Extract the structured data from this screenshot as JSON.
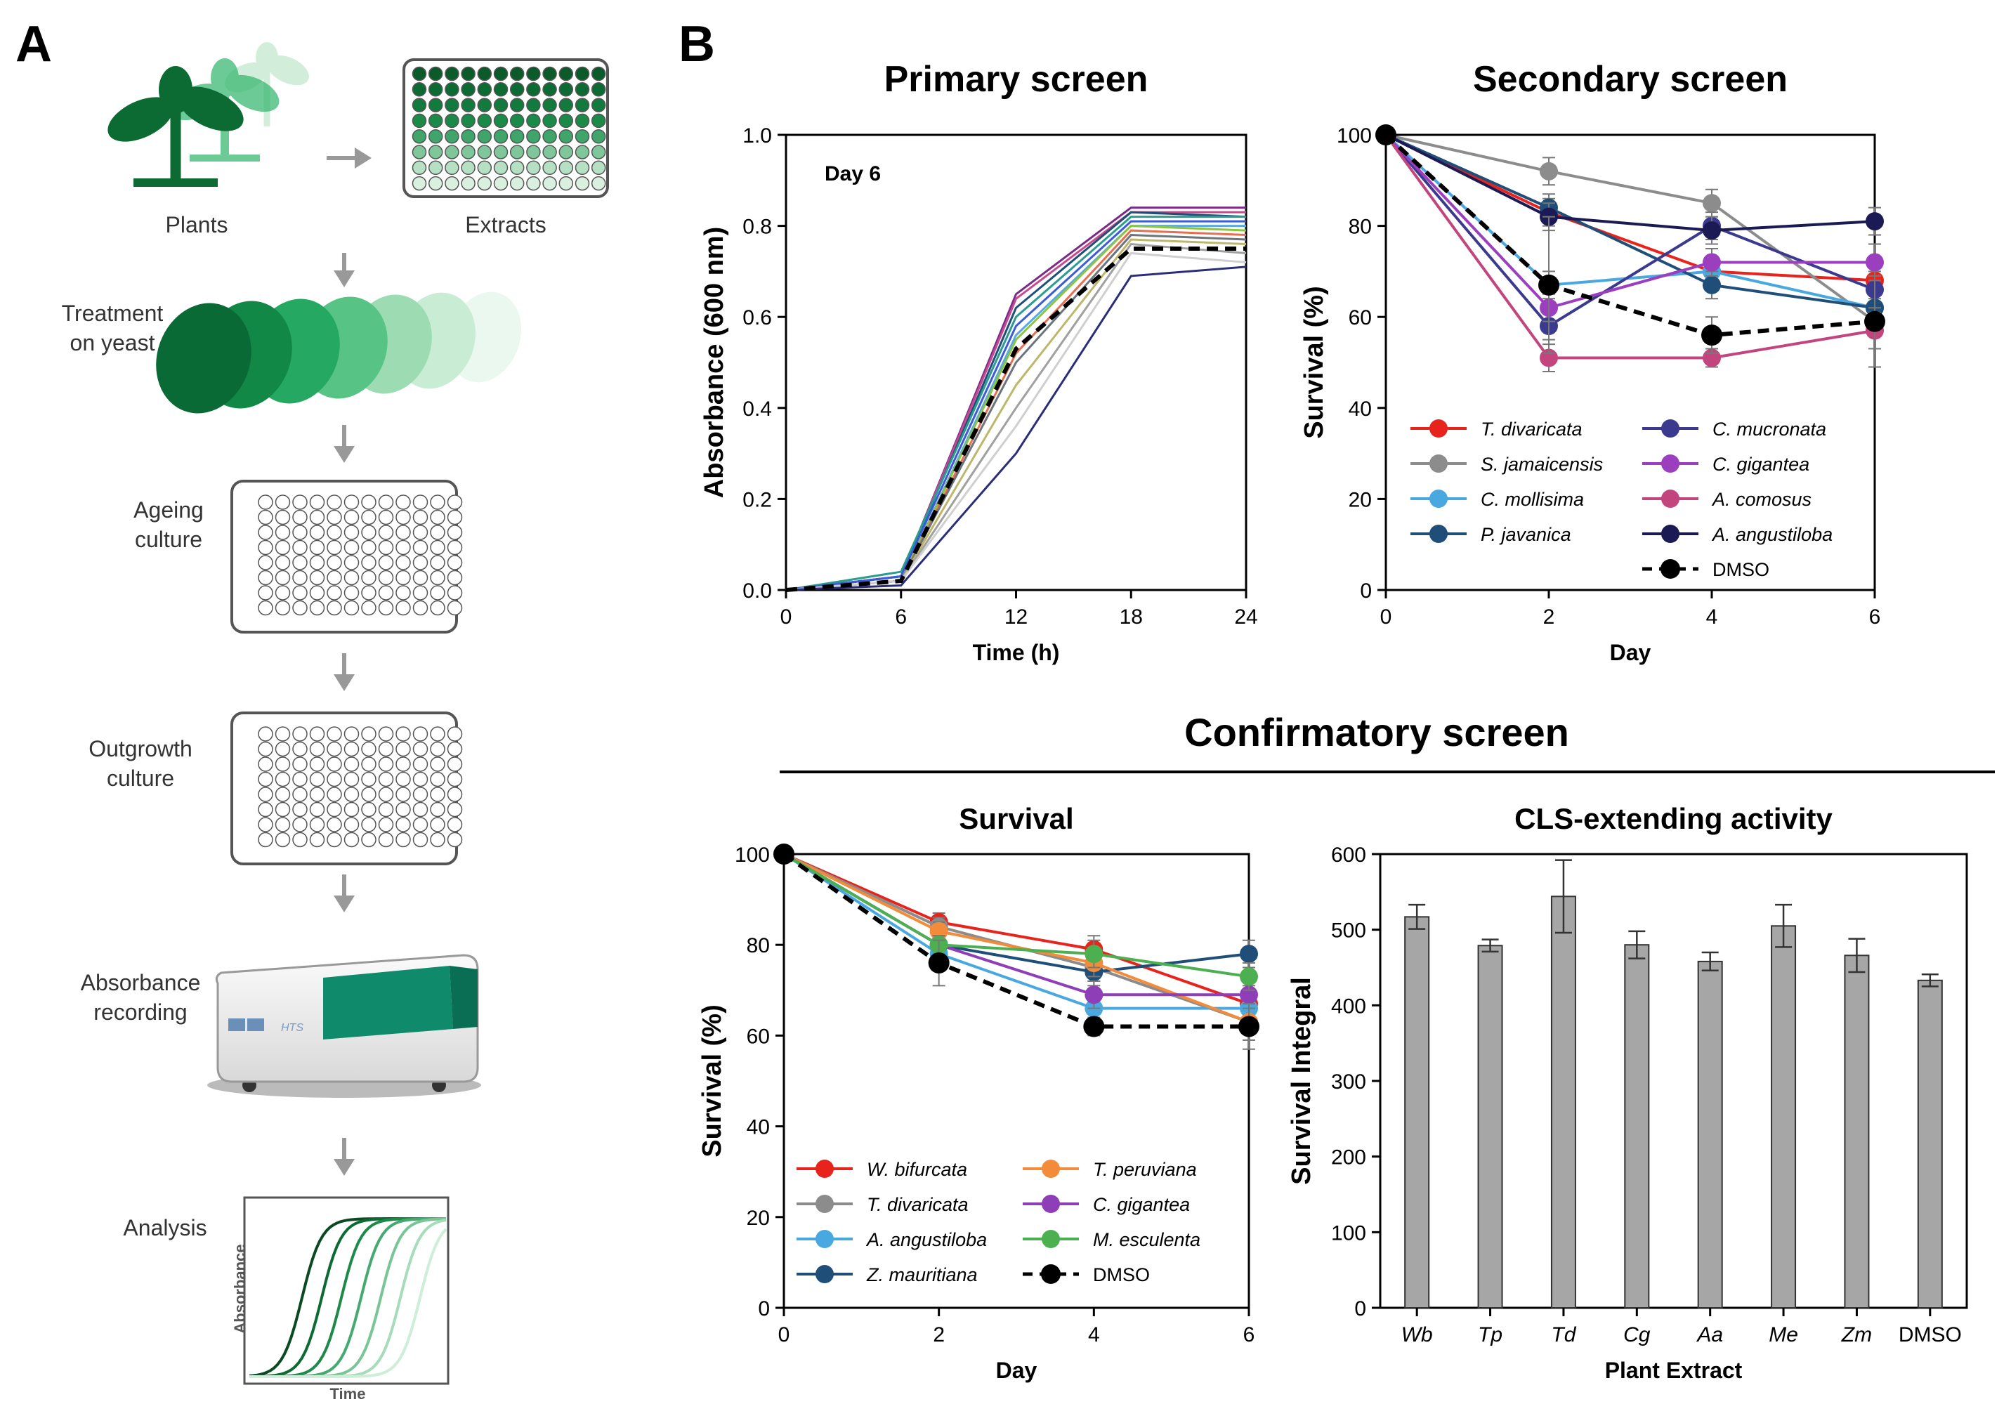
{
  "panels": {
    "a": "A",
    "b": "B"
  },
  "workflow": {
    "plants": "Plants",
    "extracts": "Extracts",
    "treatment": [
      "Treatment",
      "on yeast"
    ],
    "ageing": [
      "Ageing",
      "culture"
    ],
    "outgrowth": [
      "Outgrowth",
      "culture"
    ],
    "absorbance": [
      "Absorbance",
      "recording"
    ],
    "analysis": "Analysis",
    "analysis_ylabel": "Absorbance",
    "analysis_xlabel": "Time",
    "reader_badge": "HTS",
    "colors": {
      "dark": "#0c5c2c",
      "mid": "#1aa35a",
      "light": "#a9e0bd",
      "teal": "#0f8a6a"
    }
  },
  "confirmatory_title": "Confirmatory screen",
  "chart_data": [
    {
      "id": "primary",
      "type": "line",
      "title": "Primary screen",
      "annotation": "Day 6",
      "xlabel": "Time (h)",
      "ylabel": "Absorbance (600 nm)",
      "xlim": [
        0,
        24
      ],
      "ylim": [
        0,
        1.0
      ],
      "xticks": [
        "0",
        "6",
        "12",
        "18",
        "24"
      ],
      "yticks": [
        "0.0",
        "0.2",
        "0.4",
        "0.6",
        "0.8",
        "1.0"
      ],
      "x": [
        0,
        6,
        12,
        18,
        24
      ],
      "series": [
        {
          "values": [
            0,
            0.03,
            0.65,
            0.84,
            0.84
          ],
          "color": "#7b2a8a"
        },
        {
          "values": [
            0,
            0.03,
            0.64,
            0.83,
            0.83
          ],
          "color": "#c74a8f"
        },
        {
          "values": [
            0,
            0.03,
            0.62,
            0.83,
            0.82
          ],
          "color": "#1f4e79"
        },
        {
          "values": [
            0,
            0.04,
            0.6,
            0.82,
            0.82
          ],
          "color": "#2a9d8f"
        },
        {
          "values": [
            0,
            0.03,
            0.58,
            0.81,
            0.81
          ],
          "color": "#3b5bdb"
        },
        {
          "values": [
            0,
            0.02,
            0.56,
            0.8,
            0.8
          ],
          "color": "#5aa9e6"
        },
        {
          "values": [
            0,
            0.02,
            0.55,
            0.8,
            0.79
          ],
          "color": "#8cc63f"
        },
        {
          "values": [
            0,
            0.02,
            0.52,
            0.79,
            0.78
          ],
          "color": "#e76f51"
        },
        {
          "values": [
            0,
            0.02,
            0.5,
            0.78,
            0.77
          ],
          "color": "#6c757d"
        },
        {
          "values": [
            0,
            0.02,
            0.45,
            0.77,
            0.76
          ],
          "color": "#bdb76b"
        },
        {
          "values": [
            0,
            0.02,
            0.4,
            0.76,
            0.74
          ],
          "color": "#a0a0a0"
        },
        {
          "values": [
            0,
            0.02,
            0.36,
            0.74,
            0.72
          ],
          "color": "#cfcfcf"
        },
        {
          "values": [
            0,
            0.01,
            0.3,
            0.69,
            0.71
          ],
          "color": "#2b2d7a"
        }
      ],
      "dmso": {
        "name": "DMSO",
        "values": [
          0,
          0.02,
          0.53,
          0.75,
          0.75
        ]
      }
    },
    {
      "id": "secondary",
      "type": "line",
      "title": "Secondary screen",
      "xlabel": "Day",
      "ylabel": "Survival (%)",
      "xlim": [
        0,
        6
      ],
      "ylim": [
        0,
        100
      ],
      "xticks": [
        "0",
        "2",
        "4",
        "6"
      ],
      "yticks": [
        "0",
        "20",
        "40",
        "60",
        "80",
        "100"
      ],
      "x": [
        0,
        2,
        4,
        6
      ],
      "series": [
        {
          "name": "T. divaricata",
          "color": "#e8231c",
          "values": [
            100,
            83,
            70,
            68
          ],
          "err": [
            0,
            3,
            3,
            4
          ]
        },
        {
          "name": "S. jamaicensis",
          "color": "#8c8c8c",
          "values": [
            100,
            92,
            85,
            59
          ],
          "err": [
            0,
            3,
            3,
            10
          ]
        },
        {
          "name": "C. mollisima",
          "color": "#4aa8e0",
          "values": [
            100,
            67,
            70,
            62
          ],
          "err": [
            0,
            3,
            3,
            4
          ]
        },
        {
          "name": "P. javanica",
          "color": "#1f4e79",
          "values": [
            100,
            84,
            67,
            62
          ],
          "err": [
            0,
            3,
            3,
            4
          ]
        },
        {
          "name": "C. mucronata",
          "color": "#3b3a8f",
          "values": [
            100,
            58,
            80,
            66
          ],
          "err": [
            0,
            3,
            3,
            4
          ]
        },
        {
          "name": "C. gigantea",
          "color": "#9b3fbf",
          "values": [
            100,
            62,
            72,
            72
          ],
          "err": [
            0,
            3,
            3,
            4
          ]
        },
        {
          "name": "A. comosus",
          "color": "#c2457e",
          "values": [
            100,
            51,
            51,
            57
          ],
          "err": [
            0,
            3,
            2,
            4
          ]
        },
        {
          "name": "A. angustiloba",
          "color": "#1c1a55",
          "values": [
            100,
            82,
            79,
            81
          ],
          "err": [
            0,
            3,
            3,
            3
          ]
        }
      ],
      "dmso": {
        "name": "DMSO",
        "values": [
          100,
          67,
          56,
          59
        ],
        "err": [
          0,
          15,
          4,
          10
        ]
      }
    },
    {
      "id": "survival",
      "type": "line",
      "title": "Survival",
      "xlabel": "Day",
      "ylabel": "Survival (%)",
      "xlim": [
        0,
        6
      ],
      "ylim": [
        0,
        100
      ],
      "xticks": [
        "0",
        "2",
        "4",
        "6"
      ],
      "yticks": [
        "0",
        "20",
        "40",
        "60",
        "80",
        "100"
      ],
      "x": [
        0,
        2,
        4,
        6
      ],
      "series": [
        {
          "name": "W. bifurcata",
          "color": "#e8231c",
          "values": [
            100,
            85,
            79,
            67
          ],
          "err": [
            0,
            2,
            3,
            4
          ]
        },
        {
          "name": "T. divaricata",
          "color": "#8c8c8c",
          "values": [
            100,
            84,
            75,
            63
          ],
          "err": [
            0,
            2,
            3,
            4
          ]
        },
        {
          "name": "A. angustiloba",
          "color": "#4aa8e0",
          "values": [
            100,
            78,
            66,
            66
          ],
          "err": [
            0,
            2,
            3,
            3
          ]
        },
        {
          "name": "Z. mauritiana",
          "color": "#1f4e79",
          "values": [
            100,
            80,
            74,
            78
          ],
          "err": [
            0,
            2,
            3,
            3
          ]
        },
        {
          "name": "T. peruviana",
          "color": "#f28c3a",
          "values": [
            100,
            83,
            76,
            63
          ],
          "err": [
            0,
            2,
            3,
            4
          ]
        },
        {
          "name": "C. gigantea",
          "color": "#8e3fb8",
          "values": [
            100,
            80,
            69,
            69
          ],
          "err": [
            0,
            2,
            3,
            3
          ]
        },
        {
          "name": "M. esculenta",
          "color": "#4caf50",
          "values": [
            100,
            80,
            78,
            73
          ],
          "err": [
            0,
            2,
            3,
            3
          ]
        }
      ],
      "dmso": {
        "name": "DMSO",
        "values": [
          100,
          76,
          62,
          62
        ],
        "err": [
          0,
          5,
          2,
          5
        ]
      }
    },
    {
      "id": "cls",
      "type": "bar",
      "title": "CLS-extending activity",
      "xlabel": "Plant Extract",
      "ylabel": "Survival Integral",
      "ylim": [
        0,
        600
      ],
      "yticks": [
        "0",
        "100",
        "200",
        "300",
        "400",
        "500",
        "600"
      ],
      "categories": [
        "Wb",
        "Tp",
        "Td",
        "Cg",
        "Aa",
        "Me",
        "Zm",
        "DMSO"
      ],
      "italic": [
        true,
        true,
        true,
        true,
        true,
        true,
        true,
        false
      ],
      "values": [
        517,
        479,
        544,
        480,
        458,
        505,
        466,
        433
      ],
      "err": [
        16,
        8,
        48,
        18,
        12,
        28,
        22,
        8
      ],
      "color": "#a6a6a6"
    }
  ]
}
